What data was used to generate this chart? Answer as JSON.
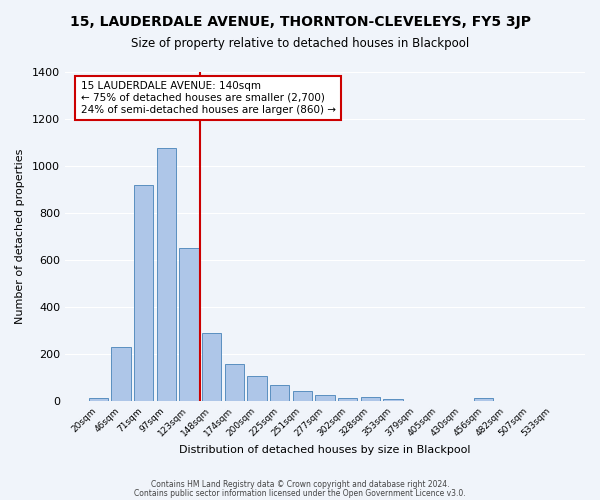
{
  "title": "15, LAUDERDALE AVENUE, THORNTON-CLEVELEYS, FY5 3JP",
  "subtitle": "Size of property relative to detached houses in Blackpool",
  "xlabel": "Distribution of detached houses by size in Blackpool",
  "ylabel": "Number of detached properties",
  "bin_labels": [
    "20sqm",
    "46sqm",
    "71sqm",
    "97sqm",
    "123sqm",
    "148sqm",
    "174sqm",
    "200sqm",
    "225sqm",
    "251sqm",
    "277sqm",
    "302sqm",
    "328sqm",
    "353sqm",
    "379sqm",
    "405sqm",
    "430sqm",
    "456sqm",
    "482sqm",
    "507sqm",
    "533sqm"
  ],
  "bar_heights": [
    15,
    228,
    920,
    1075,
    650,
    290,
    158,
    105,
    70,
    45,
    28,
    15,
    18,
    10,
    0,
    0,
    0,
    12,
    0,
    0,
    0
  ],
  "bar_color": "#aec6e8",
  "bar_edgecolor": "#5a8fc0",
  "vline_pos": 4.5,
  "vline_color": "#cc0000",
  "annotation_title": "15 LAUDERDALE AVENUE: 140sqm",
  "annotation_line1": "← 75% of detached houses are smaller (2,700)",
  "annotation_line2": "24% of semi-detached houses are larger (860) →",
  "annotation_box_edgecolor": "#cc0000",
  "ylim": [
    0,
    1400
  ],
  "yticks": [
    0,
    200,
    400,
    600,
    800,
    1000,
    1200,
    1400
  ],
  "bg_color": "#f0f4fa",
  "grid_color": "#ffffff",
  "footer1": "Contains HM Land Registry data © Crown copyright and database right 2024.",
  "footer2": "Contains public sector information licensed under the Open Government Licence v3.0."
}
